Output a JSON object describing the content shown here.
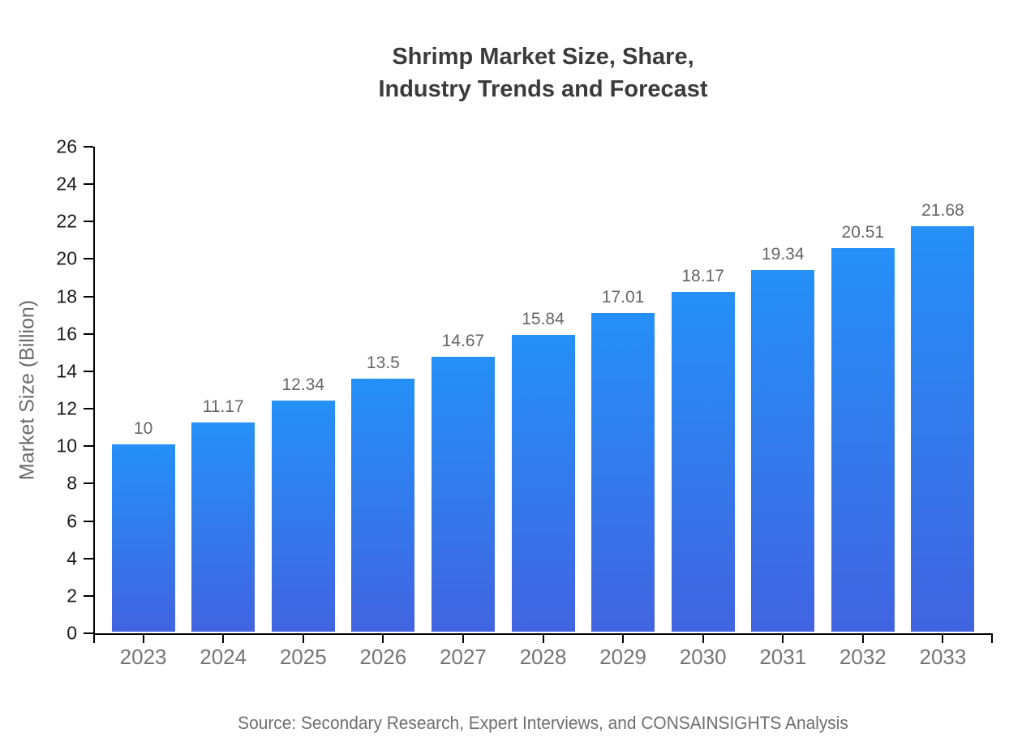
{
  "title": {
    "line1": "Shrimp Market Size, Share,",
    "line2": "Industry Trends and Forecast"
  },
  "source_note": "Source: Secondary Research, Expert Interviews, and CONSAINSIGHTS Analysis",
  "chart_data": {
    "type": "bar",
    "title": "Shrimp Market Size, Share, Industry Trends and Forecast",
    "categories": [
      "2023",
      "2024",
      "2025",
      "2026",
      "2027",
      "2028",
      "2029",
      "2030",
      "2031",
      "2032",
      "2033"
    ],
    "values": [
      10,
      11.17,
      12.34,
      13.5,
      14.67,
      15.84,
      17.01,
      18.17,
      19.34,
      20.51,
      21.68
    ],
    "value_labels": [
      "10",
      "11.17",
      "12.34",
      "13.5",
      "14.67",
      "15.84",
      "17.01",
      "18.17",
      "19.34",
      "20.51",
      "21.68"
    ],
    "xlabel": "",
    "ylabel": "Market Size (Billion)",
    "ylim": [
      0,
      26
    ],
    "ytick_step": 2,
    "grid": false,
    "legend_position": "none",
    "colors": {
      "bar_gradient_top": "#2590f8",
      "bar_gradient_bottom": "#4164e1",
      "axis": "#000000",
      "value_label": "#666666",
      "x_tick_label": "#757575",
      "y_tick_label": "#1a1a1a",
      "title": "#3b3b3b",
      "source": "#6e6e6e"
    }
  }
}
